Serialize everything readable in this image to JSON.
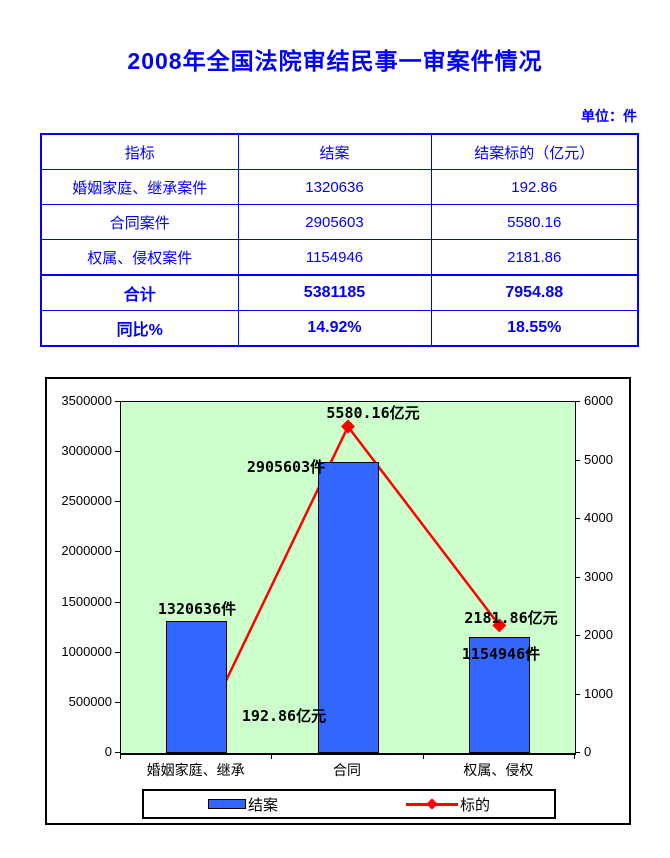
{
  "title": "2008年全国法院审结民事一审案件情况",
  "unit_label": "单位：件",
  "table": {
    "headers": [
      "指标",
      "结案",
      "结案标的（亿元）"
    ],
    "rows": [
      {
        "label": "婚姻家庭、继承案件",
        "cases": "1320636",
        "amount": "192.86",
        "bold": false,
        "total": false
      },
      {
        "label": "合同案件",
        "cases": "2905603",
        "amount": "5580.16",
        "bold": false,
        "total": false
      },
      {
        "label": "权属、侵权案件",
        "cases": "1154946",
        "amount": "2181.86",
        "bold": false,
        "total": false
      },
      {
        "label": "合计",
        "cases": "5381185",
        "amount": "7954.88",
        "bold": true,
        "total": true
      },
      {
        "label": "同比%",
        "cases": "14.92%",
        "amount": "18.55%",
        "bold": true,
        "total": false
      }
    ]
  },
  "chart_data": {
    "type": "combo",
    "categories": [
      "婚姻家庭、继承",
      "合同",
      "权属、侵权"
    ],
    "series": [
      {
        "name": "结案",
        "type": "bar",
        "axis": "left",
        "color": "#3366FF",
        "values": [
          1320636,
          2905603,
          1154946
        ],
        "labels": [
          "1320636件",
          "2905603件",
          "1154946件"
        ]
      },
      {
        "name": "标的",
        "type": "line",
        "axis": "right",
        "color": "#FF0000",
        "values": [
          192.86,
          5580.16,
          2181.86
        ],
        "labels": [
          "192.86亿元",
          "5580.16亿元",
          "2181.86亿元"
        ]
      }
    ],
    "left_axis": {
      "min": 0,
      "max": 3500000,
      "step": 500000,
      "ticks": [
        "3500000",
        "3000000",
        "2500000",
        "2000000",
        "1500000",
        "1000000",
        "500000",
        "0"
      ]
    },
    "right_axis": {
      "min": 0,
      "max": 6000,
      "step": 1000,
      "ticks": [
        "6000",
        "5000",
        "4000",
        "3000",
        "2000",
        "1000",
        "0"
      ]
    },
    "plot_bg": "#CCFFCC",
    "legend": [
      "结案",
      "标的"
    ],
    "grid": false,
    "legend_position": "bottom"
  }
}
